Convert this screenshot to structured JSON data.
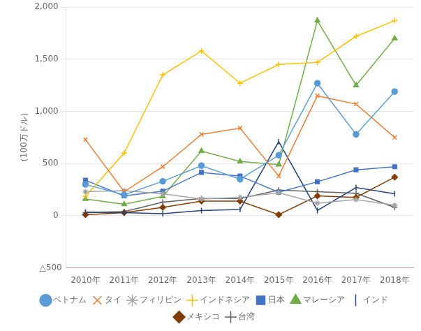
{
  "chart_data": {
    "type": "line",
    "ylabel": "（100万ドル）",
    "categories": [
      "2010年",
      "2011年",
      "2012年",
      "2013年",
      "2014年",
      "2015年",
      "2016年",
      "2017年",
      "2018年"
    ],
    "series": [
      {
        "name": "ベトナム",
        "color": "#5B9BD5",
        "marker": "circle",
        "values": [
          300,
          200,
          330,
          480,
          350,
          580,
          1270,
          780,
          1190
        ]
      },
      {
        "name": "タイ",
        "color": "#ED7D31",
        "marker": "x",
        "values": [
          730,
          230,
          470,
          780,
          840,
          380,
          1150,
          1070,
          750
        ]
      },
      {
        "name": "フィリピン",
        "color": "#A5A5A5",
        "marker": "star",
        "values": [
          230,
          240,
          210,
          160,
          175,
          220,
          120,
          155,
          100
        ]
      },
      {
        "name": "インドネシア",
        "color": "#FFC000",
        "marker": "plus_filled",
        "values": [
          185,
          600,
          1350,
          1580,
          1270,
          1450,
          1470,
          1720,
          1870
        ]
      },
      {
        "name": "日本",
        "color": "#4472C4",
        "marker": "square",
        "values": [
          340,
          190,
          235,
          415,
          380,
          225,
          325,
          440,
          470
        ]
      },
      {
        "name": "マレーシア",
        "color": "#70AD47",
        "marker": "triangle",
        "values": [
          160,
          110,
          185,
          620,
          520,
          490,
          1870,
          1250,
          1700
        ]
      },
      {
        "name": "インド",
        "color": "#264478",
        "marker": "vline",
        "values": [
          35,
          30,
          20,
          50,
          60,
          710,
          50,
          270,
          210
        ]
      },
      {
        "name": "メキシコ",
        "color": "#833C00",
        "marker": "diamond",
        "values": [
          10,
          30,
          80,
          140,
          140,
          10,
          190,
          175,
          370
        ]
      },
      {
        "name": "台湾",
        "color": "#636363",
        "marker": "plus",
        "values": [
          30,
          40,
          130,
          165,
          165,
          245,
          230,
          215,
          80
        ]
      }
    ],
    "ylim": [
      -500,
      2000
    ],
    "yticks": [
      0,
      500,
      {
        "value": 1000,
        "label": "1,000"
      },
      {
        "value": 1500,
        "label": "1,500"
      },
      {
        "value": 2000,
        "label": "2,000"
      }
    ],
    "grid": "y",
    "legend": "bottom",
    "annotations": [
      {
        "text": "△500",
        "y": -500
      }
    ]
  }
}
